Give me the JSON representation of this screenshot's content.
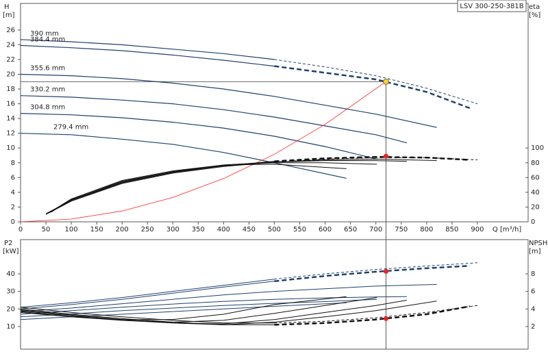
{
  "chart_data": [
    {
      "type": "line",
      "title": "LSV 300-250-381B",
      "ylabel": "H",
      "yunit": "[m]",
      "y2label": "eta",
      "y2unit": "[%]",
      "xlabel": "Q [m³/h]",
      "xlim": [
        0,
        1000
      ],
      "xticks": [
        0,
        50,
        100,
        150,
        200,
        250,
        300,
        350,
        400,
        450,
        500,
        550,
        600,
        650,
        700,
        750,
        800,
        850,
        900
      ],
      "ylim": [
        0,
        29.6
      ],
      "yticks": [
        0,
        2,
        4,
        6,
        8,
        10,
        12,
        14,
        16,
        18,
        20,
        22,
        24,
        26
      ],
      "y2lim": [
        0,
        296
      ],
      "y2ticks": [
        0,
        20,
        40,
        60,
        80,
        100
      ],
      "series": [
        {
          "name": "390 mm",
          "color": "#1f3f6e",
          "style": "solid",
          "width": 1.2,
          "x": [
            0,
            100,
            200,
            300,
            400,
            500
          ],
          "values": [
            24.7,
            24.4,
            24.0,
            23.4,
            22.8,
            22.0
          ]
        },
        {
          "color": "#1f3f6e",
          "style": "dashed",
          "width": 1,
          "x": [
            500,
            600,
            700,
            800,
            900
          ],
          "values": [
            22.0,
            21.0,
            19.8,
            18.1,
            16.0
          ]
        },
        {
          "name": "384.4 mm",
          "color": "#1f3f6e",
          "style": "solid",
          "width": 1.2,
          "x": [
            0,
            100,
            200,
            300,
            400,
            500
          ],
          "values": [
            23.9,
            23.6,
            23.2,
            22.6,
            21.9,
            21.1
          ]
        },
        {
          "color": "#1f3f6e",
          "style": "dashed",
          "width": 2.5,
          "x": [
            500,
            600,
            700,
            800,
            885
          ],
          "values": [
            21.1,
            20.2,
            19.3,
            17.6,
            15.4
          ]
        },
        {
          "name": "355.6 mm",
          "color": "#1f3f6e",
          "style": "solid",
          "width": 1.2,
          "x": [
            0,
            100,
            200,
            300,
            400,
            500,
            600,
            700,
            820
          ],
          "values": [
            20.0,
            19.8,
            19.4,
            18.8,
            18.0,
            17.0,
            15.8,
            14.6,
            12.8
          ]
        },
        {
          "name": "330.2 mm",
          "color": "#1f3f6e",
          "style": "solid",
          "width": 1.2,
          "x": [
            0,
            100,
            200,
            300,
            400,
            500,
            600,
            700,
            761
          ],
          "values": [
            17.1,
            16.9,
            16.5,
            16.0,
            15.2,
            14.2,
            13.0,
            11.8,
            10.7
          ]
        },
        {
          "name": "304.8 mm",
          "color": "#1f3f6e",
          "style": "solid",
          "width": 1.2,
          "x": [
            0,
            100,
            200,
            300,
            400,
            500,
            600,
            702
          ],
          "values": [
            14.7,
            14.5,
            14.1,
            13.5,
            12.7,
            11.6,
            10.2,
            8.5
          ]
        },
        {
          "name": "279.4 mm",
          "color": "#1f3f6e",
          "style": "solid",
          "width": 1.2,
          "x": [
            0,
            100,
            200,
            300,
            400,
            500,
            642
          ],
          "values": [
            12.0,
            11.8,
            11.2,
            10.5,
            9.4,
            8.0,
            5.9
          ]
        },
        {
          "color": "#ff2020",
          "style": "solid",
          "width": 0.8,
          "x": [
            0,
            100,
            200,
            300,
            400,
            500,
            600,
            720
          ],
          "values": [
            0,
            0.37,
            1.47,
            3.3,
            5.86,
            9.16,
            13.2,
            19.0
          ]
        },
        {
          "color": "#111111",
          "style": "solid",
          "width": 1,
          "axis": "y2",
          "x": [
            50,
            100,
            200,
            300,
            400,
            500
          ],
          "values": [
            10,
            28,
            52,
            66,
            75,
            81
          ]
        },
        {
          "color": "#111111",
          "style": "dashed",
          "width": 1,
          "axis": "y2",
          "x": [
            500,
            600,
            700,
            800,
            900
          ],
          "values": [
            81,
            85,
            87,
            87,
            84
          ]
        },
        {
          "color": "#111111",
          "style": "solid",
          "width": 1,
          "axis": "y2",
          "x": [
            50,
            100,
            200,
            300,
            400,
            500
          ],
          "values": [
            11,
            29,
            53,
            67,
            76,
            82
          ]
        },
        {
          "color": "#111111",
          "style": "dashed",
          "width": 2.5,
          "axis": "y2",
          "x": [
            500,
            600,
            700,
            800,
            885
          ],
          "values": [
            82,
            86,
            88,
            87,
            84
          ]
        },
        {
          "color": "#111111",
          "style": "solid",
          "width": 1,
          "axis": "y2",
          "x": [
            55,
            100,
            200,
            300,
            400,
            500,
            600,
            700,
            820
          ],
          "values": [
            12,
            29,
            53,
            67,
            76,
            81,
            84,
            85,
            83
          ]
        },
        {
          "color": "#111111",
          "style": "solid",
          "width": 1,
          "axis": "y2",
          "x": [
            55,
            100,
            200,
            300,
            400,
            500,
            600,
            700,
            761
          ],
          "values": [
            12,
            30,
            54,
            68,
            77,
            81,
            83,
            83,
            82
          ]
        },
        {
          "color": "#111111",
          "style": "solid",
          "width": 1,
          "axis": "y2",
          "x": [
            60,
            100,
            200,
            300,
            400,
            500,
            600,
            702
          ],
          "values": [
            13,
            30,
            55,
            68,
            77,
            80,
            80,
            78
          ]
        },
        {
          "color": "#111111",
          "style": "solid",
          "width": 1,
          "axis": "y2",
          "x": [
            60,
            100,
            200,
            300,
            400,
            500,
            642
          ],
          "values": [
            14,
            31,
            56,
            69,
            77,
            78,
            72
          ]
        }
      ],
      "operating_point": {
        "x": 720,
        "y": 19.0,
        "color": "#ffd21f"
      },
      "markers": [
        {
          "x": 720,
          "y": 89,
          "axis": "y2",
          "color": "#ee2222"
        }
      ]
    },
    {
      "type": "line",
      "ylabel": "P2",
      "yunit": "[kW]",
      "y2label": "NPSH",
      "y2unit": "[m]",
      "xlim": [
        0,
        1000
      ],
      "ylim": [
        -2.9,
        59.5
      ],
      "yticks": [
        10,
        20,
        30,
        40
      ],
      "y2lim": [
        -0.58,
        11.9
      ],
      "y2ticks": [
        2,
        4,
        6,
        8
      ],
      "series": [
        {
          "color": "#1f3f6e",
          "style": "solid",
          "width": 1,
          "x": [
            0,
            100,
            200,
            300,
            400,
            500
          ],
          "values": [
            21,
            23.5,
            26.5,
            30,
            33.5,
            37
          ]
        },
        {
          "color": "#1f3f6e",
          "style": "dashed",
          "width": 1,
          "x": [
            500,
            600,
            700,
            800,
            900
          ],
          "values": [
            37,
            40,
            42.5,
            44.5,
            46.3
          ]
        },
        {
          "color": "#1f3f6e",
          "style": "solid",
          "width": 1,
          "x": [
            0,
            100,
            200,
            300,
            400,
            500
          ],
          "values": [
            20,
            22.5,
            25.5,
            29,
            32.5,
            35.8
          ]
        },
        {
          "color": "#1f3f6e",
          "style": "dashed",
          "width": 2.5,
          "x": [
            500,
            600,
            700,
            800,
            885
          ],
          "values": [
            35.8,
            38.8,
            41.2,
            43.2,
            44.6
          ]
        },
        {
          "color": "#1f3f6e",
          "style": "solid",
          "width": 1,
          "x": [
            0,
            100,
            200,
            300,
            400,
            500,
            600,
            700,
            820
          ],
          "values": [
            18.5,
            20.5,
            23,
            25.5,
            28,
            30,
            31.5,
            33,
            34
          ]
        },
        {
          "color": "#1f3f6e",
          "style": "solid",
          "width": 1,
          "x": [
            0,
            100,
            200,
            300,
            400,
            500,
            600,
            700,
            761
          ],
          "values": [
            17,
            19,
            21,
            22.8,
            24.3,
            25.5,
            26.3,
            26.8,
            27
          ]
        },
        {
          "color": "#1f3f6e",
          "style": "solid",
          "width": 1,
          "x": [
            0,
            100,
            200,
            300,
            400,
            500,
            600,
            702
          ],
          "values": [
            15.5,
            17.2,
            19,
            20.5,
            22,
            23.2,
            24.2,
            25.5
          ]
        },
        {
          "color": "#1f3f6e",
          "style": "solid",
          "width": 1,
          "x": [
            0,
            100,
            200,
            300,
            400,
            500,
            642
          ],
          "values": [
            14,
            15.5,
            17,
            18.5,
            20,
            21.5,
            23.5
          ]
        },
        {
          "color": "#111111",
          "style": "solid",
          "width": 1,
          "axis": "y2",
          "x": [
            0,
            100,
            200,
            300,
            400,
            500
          ],
          "values": [
            4.2,
            3.6,
            3.1,
            2.7,
            2.4,
            2.4
          ]
        },
        {
          "color": "#111111",
          "style": "dashed",
          "width": 1,
          "axis": "y2",
          "x": [
            500,
            600,
            700,
            800,
            900
          ],
          "values": [
            2.4,
            2.6,
            3.0,
            3.6,
            4.4
          ]
        },
        {
          "color": "#111111",
          "style": "solid",
          "width": 1,
          "axis": "y2",
          "x": [
            0,
            100,
            200,
            300,
            400,
            500
          ],
          "values": [
            4.0,
            3.4,
            2.9,
            2.5,
            2.2,
            2.2
          ]
        },
        {
          "color": "#111111",
          "style": "dashed",
          "width": 2.5,
          "axis": "y2",
          "x": [
            500,
            600,
            700,
            800,
            885
          ],
          "values": [
            2.2,
            2.4,
            2.8,
            3.4,
            4.3
          ]
        },
        {
          "color": "#111111",
          "style": "solid",
          "width": 1,
          "axis": "y2",
          "x": [
            0,
            100,
            200,
            300,
            400,
            500,
            600,
            700,
            820
          ],
          "values": [
            3.9,
            3.3,
            2.8,
            2.4,
            2.2,
            2.5,
            3.1,
            3.8,
            4.9
          ]
        },
        {
          "color": "#111111",
          "style": "solid",
          "width": 1,
          "axis": "y2",
          "x": [
            0,
            100,
            200,
            300,
            400,
            500,
            600,
            700,
            761
          ],
          "values": [
            3.8,
            3.2,
            2.7,
            2.4,
            2.3,
            2.8,
            3.6,
            4.4,
            5.0
          ]
        },
        {
          "color": "#111111",
          "style": "solid",
          "width": 1,
          "axis": "y2",
          "x": [
            0,
            100,
            200,
            300,
            400,
            500,
            600,
            702
          ],
          "values": [
            3.7,
            3.1,
            2.7,
            2.5,
            2.7,
            3.5,
            4.4,
            5.3
          ]
        },
        {
          "color": "#111111",
          "style": "solid",
          "width": 1,
          "axis": "y2",
          "x": [
            0,
            100,
            200,
            300,
            400,
            500,
            642
          ],
          "values": [
            3.6,
            3.1,
            2.8,
            2.8,
            3.4,
            4.5,
            5.4
          ]
        }
      ],
      "markers": [
        {
          "x": 720,
          "y": 41.4,
          "color": "#ee2222"
        },
        {
          "x": 720,
          "y": 2.9,
          "axis": "y2",
          "color": "#ee2222"
        }
      ]
    }
  ]
}
